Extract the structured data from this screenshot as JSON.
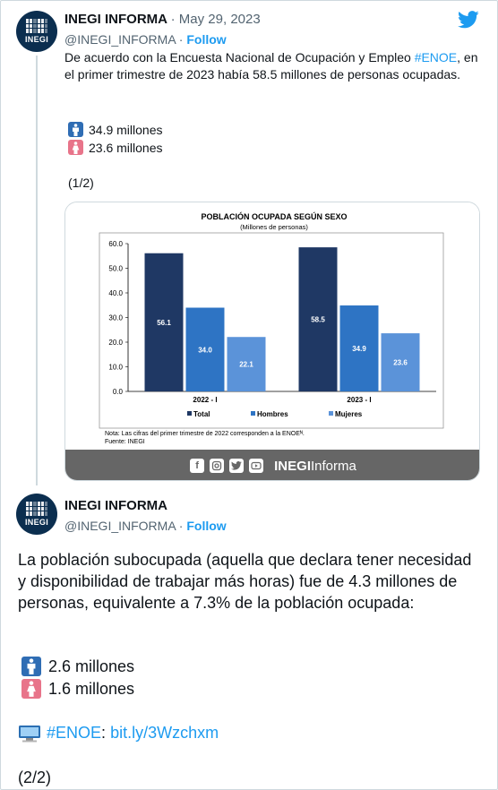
{
  "tweet1": {
    "author": "INEGI INFORMA",
    "date": "May 29, 2023",
    "handle": "@INEGI_INFORMA",
    "follow_label": "Follow",
    "text_before": "De acuerdo con la Encuesta Nacional de Ocupación y Empleo ",
    "hashtag": "#ENOE",
    "text_after": ", en el primer trimestre de 2023 había 58.5 millones de personas ocupadas.",
    "stats": [
      {
        "icon": "man-icon",
        "text": "34.9 millones"
      },
      {
        "icon": "woman-icon",
        "text": "23.6 millones"
      }
    ],
    "page": "(1/2)"
  },
  "card": {
    "footer_brand_bold": "INEGI",
    "footer_brand_rest": "Informa",
    "social_icons": [
      "facebook-icon",
      "instagram-icon",
      "twitter-icon",
      "youtube-icon"
    ]
  },
  "chart_data": {
    "type": "bar",
    "title": "POBLACIÓN OCUPADA SEGÚN SEXO",
    "subtitle": "(Millones de personas)",
    "categories": [
      "2022 - I",
      "2023 - I"
    ],
    "series": [
      {
        "name": "Total",
        "values": [
          56.1,
          58.5
        ],
        "color": "#1f3864"
      },
      {
        "name": "Hombres",
        "values": [
          34.0,
          34.9
        ],
        "color": "#2e74c4"
      },
      {
        "name": "Mujeres",
        "values": [
          22.1,
          23.6
        ],
        "color": "#5b93d9"
      }
    ],
    "ylim": [
      0,
      60
    ],
    "yticks": [
      "0.0",
      "10.0",
      "20.0",
      "30.0",
      "40.0",
      "50.0",
      "60.0"
    ],
    "value_labels": [
      [
        "56.1",
        "34.0",
        "22.1"
      ],
      [
        "58.5",
        "34.9",
        "23.6"
      ]
    ],
    "legend_position": "bottom",
    "note": "Nota: Las cifras del primer trimestre de 2022 corresponden a la ENOEᴺ.",
    "source": "Fuente: INEGI"
  },
  "tweet2": {
    "author": "INEGI INFORMA",
    "handle": "@INEGI_INFORMA",
    "follow_label": "Follow",
    "text": "La población subocupada (aquella que declara tener necesidad y disponibilidad de trabajar más horas) fue de 4.3 millones de personas, equivalente a 7.3% de la población ocupada:",
    "stats": [
      {
        "icon": "man-icon",
        "text": "2.6 millones"
      },
      {
        "icon": "woman-icon",
        "text": "1.6 millones"
      }
    ],
    "hashtag": "#ENOE",
    "colon": ":",
    "link": "bit.ly/3Wzchxm",
    "page": "(2/2)"
  },
  "colors": {
    "accent": "#1d9bf0",
    "avatar_bg": "#0b2e4f",
    "man_icon_bg": "#2f6db4",
    "woman_icon_bg": "#e8748a",
    "card_footer_bg": "#666666"
  },
  "avatar_text": "INEGI"
}
